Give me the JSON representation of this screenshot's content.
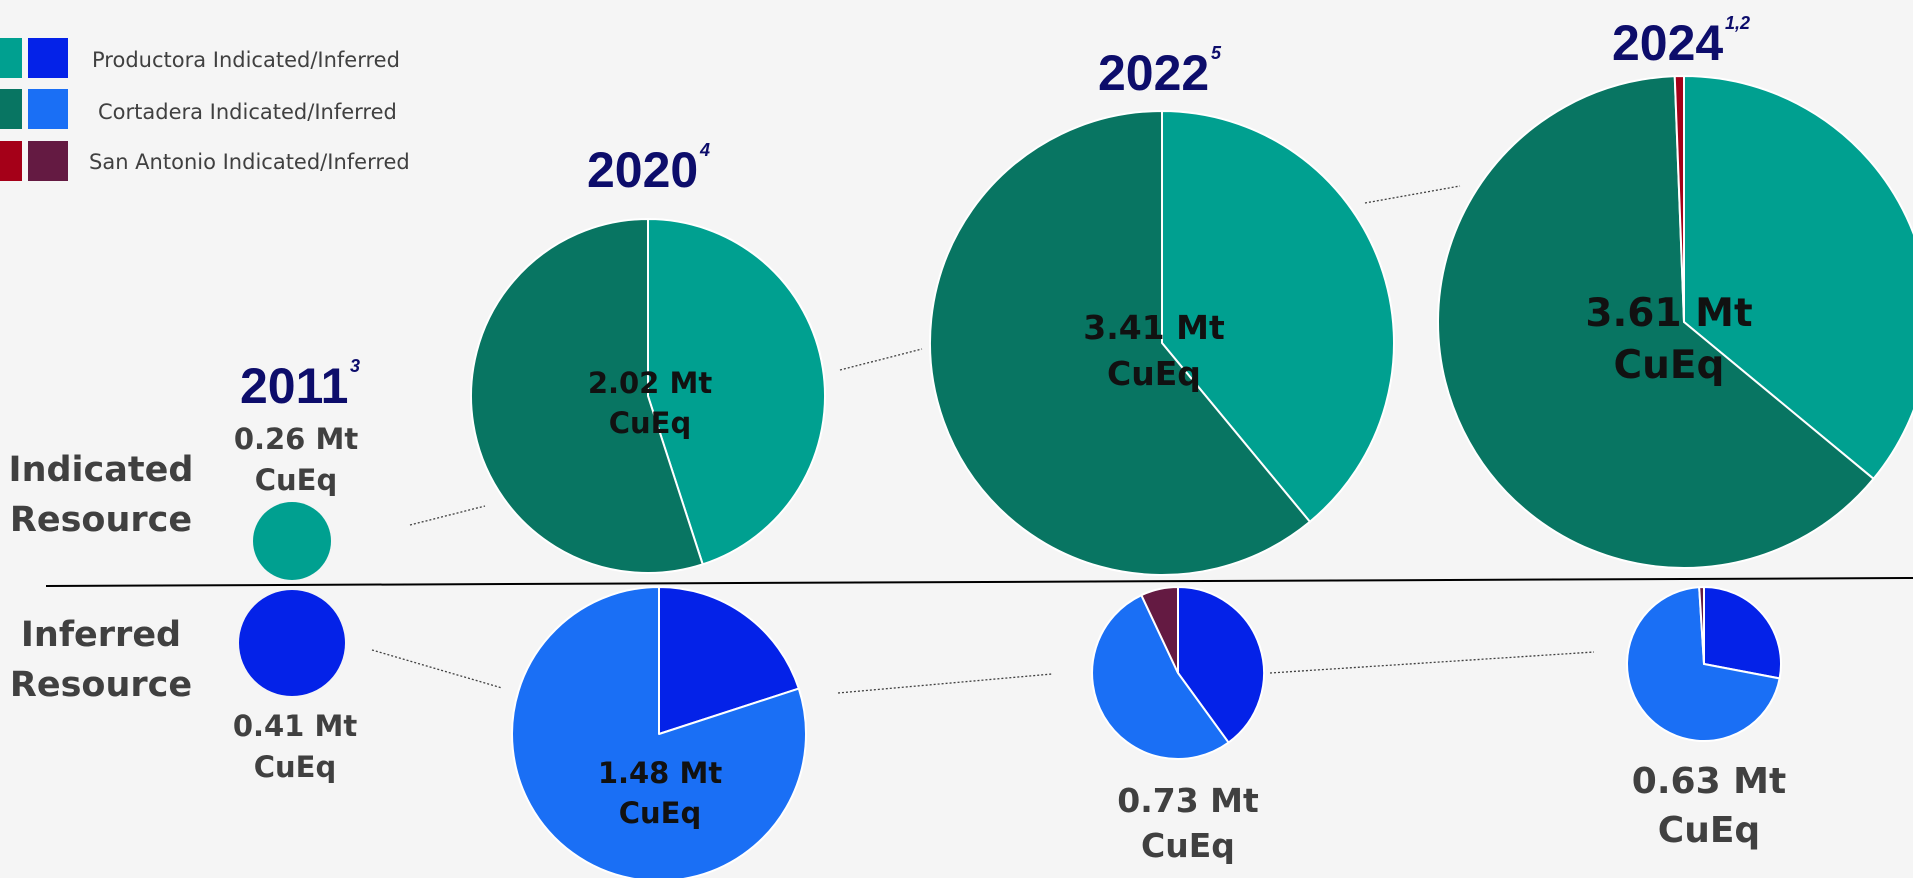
{
  "colors": {
    "background": "#f5f5f5",
    "productora_indicated": "#00a090",
    "productora_inferred": "#0422e8",
    "cortadera_indicated": "#087562",
    "cortadera_inferred": "#1a6ff5",
    "san_antonio_indicated": "#a50018",
    "san_antonio_inferred": "#641a42",
    "year_text": "#0d0d6b",
    "label_text": "#404040"
  },
  "legend": [
    {
      "label": "Productora Indicated/Inferred",
      "indicated_color": "#00a090",
      "inferred_color": "#0422e8"
    },
    {
      "label": "Cortadera Indicated/Inferred",
      "indicated_color": "#087562",
      "inferred_color": "#1a6ff5"
    },
    {
      "label": "San Antonio Indicated/Inferred",
      "indicated_color": "#a50018",
      "inferred_color": "#641a42"
    }
  ],
  "row_labels": {
    "indicated": [
      "Indicated",
      "Resource"
    ],
    "inferred": [
      "Inferred",
      "Resource"
    ]
  },
  "chart_data": {
    "type": "pie",
    "units": "Mt CuEq",
    "series_names": [
      "Productora",
      "Cortadera",
      "San Antonio"
    ],
    "years": [
      {
        "year": "2011",
        "footnote": "3",
        "indicated": {
          "total_line1": "0.26 Mt",
          "total_line2": "CuEq",
          "total": 0.26,
          "shares": {
            "Productora": 100,
            "Cortadera": 0,
            "San Antonio": 0
          }
        },
        "inferred": {
          "total_line1": "0.41 Mt",
          "total_line2": "CuEq",
          "total": 0.41,
          "shares": {
            "Productora": 100,
            "Cortadera": 0,
            "San Antonio": 0
          }
        }
      },
      {
        "year": "2020",
        "footnote": "4",
        "indicated": {
          "total_line1": "2.02 Mt",
          "total_line2": "CuEq",
          "total": 2.02,
          "shares": {
            "Productora": 45,
            "Cortadera": 55,
            "San Antonio": 0
          }
        },
        "inferred": {
          "total_line1": "1.48 Mt",
          "total_line2": "CuEq",
          "total": 1.48,
          "shares": {
            "Productora": 20,
            "Cortadera": 80,
            "San Antonio": 0
          }
        }
      },
      {
        "year": "2022",
        "footnote": "5",
        "indicated": {
          "total_line1": "3.41 Mt",
          "total_line2": "CuEq",
          "total": 3.41,
          "shares": {
            "Productora": 39,
            "Cortadera": 61,
            "San Antonio": 0
          }
        },
        "inferred": {
          "total_line1": "0.73 Mt",
          "total_line2": "CuEq",
          "total": 0.73,
          "shares": {
            "Productora": 40,
            "Cortadera": 53,
            "San Antonio": 7
          }
        }
      },
      {
        "year": "2024",
        "footnote": "1,2",
        "indicated": {
          "total_line1": "3.61 Mt",
          "total_line2": "CuEq",
          "total": 3.61,
          "shares": {
            "Productora": 36,
            "Cortadera": 63.4,
            "San Antonio": 0.6
          }
        },
        "inferred": {
          "total_line1": "0.63 Mt",
          "total_line2": "CuEq",
          "total": 0.63,
          "shares": {
            "Productora": 28,
            "Cortadera": 71,
            "San Antonio": 1
          }
        }
      }
    ]
  }
}
